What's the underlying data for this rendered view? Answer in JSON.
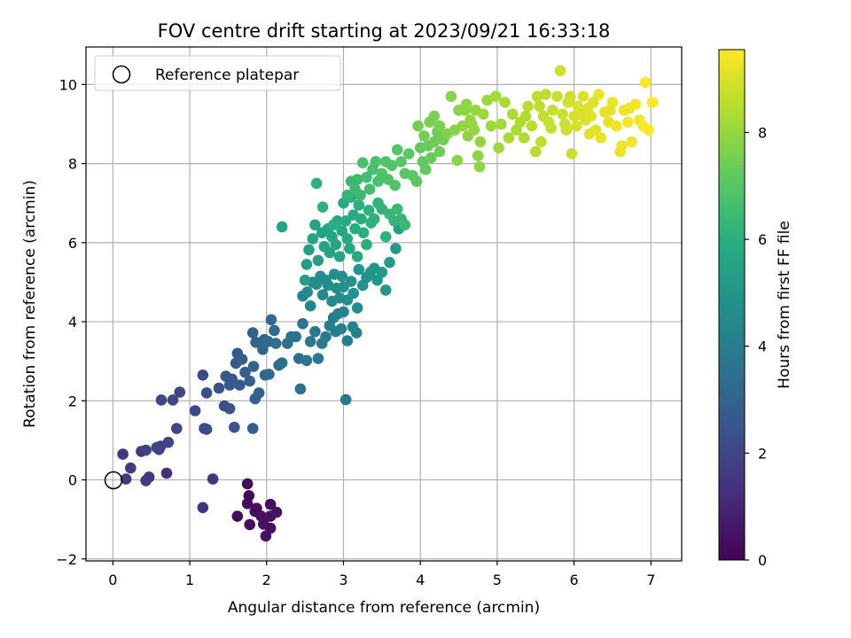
{
  "chart_data": {
    "type": "scatter",
    "title": "FOV centre drift starting at 2023/09/21 16:33:18",
    "xlabel": "Angular distance from reference (arcmin)",
    "ylabel": "Rotation from reference (arcmin)",
    "xlim": [
      -0.35,
      7.4
    ],
    "ylim": [
      -2.05,
      10.95
    ],
    "xticks": [
      "0",
      "1",
      "2",
      "3",
      "4",
      "5",
      "6",
      "7"
    ],
    "yticks": [
      "−2",
      "0",
      "2",
      "4",
      "6",
      "8",
      "10"
    ],
    "grid": true,
    "legend": {
      "placement": "top-left",
      "entries": [
        "Reference platepar"
      ]
    },
    "reference_point": {
      "x": 0,
      "y": 0
    },
    "colorbar": {
      "label": "Hours from first FF file",
      "range": [
        0,
        9.55
      ],
      "ticks": [
        "0",
        "2",
        "4",
        "6",
        "8"
      ],
      "colormap": "viridis"
    },
    "points": [
      [
        1.75,
        -0.1,
        0.15
      ],
      [
        1.77,
        -0.4,
        0.2
      ],
      [
        1.75,
        -0.6,
        0.25
      ],
      [
        1.62,
        -0.92,
        0.3
      ],
      [
        1.78,
        -1.13,
        0.35
      ],
      [
        1.87,
        -0.72,
        0.3
      ],
      [
        1.93,
        -0.92,
        0.35
      ],
      [
        1.96,
        -1.12,
        0.4
      ],
      [
        1.99,
        -1.42,
        0.45
      ],
      [
        2.05,
        -1.22,
        0.4
      ],
      [
        2.05,
        -0.92,
        0.45
      ],
      [
        2.13,
        -0.82,
        0.5
      ],
      [
        2.05,
        -0.62,
        0.3
      ],
      [
        1.85,
        -0.8,
        0.25
      ],
      [
        1.17,
        -0.7,
        1.4
      ],
      [
        1.3,
        0.02,
        1.5
      ],
      [
        0.7,
        0.17,
        1.3
      ],
      [
        0.47,
        0.07,
        1.5
      ],
      [
        0.43,
        -0.02,
        1.6
      ],
      [
        0.17,
        0.02,
        1.7
      ],
      [
        0.13,
        0.65,
        1.5
      ],
      [
        0.23,
        0.3,
        1.6
      ],
      [
        0.37,
        0.72,
        1.7
      ],
      [
        0.43,
        0.75,
        1.8
      ],
      [
        0.57,
        0.82,
        1.9
      ],
      [
        0.62,
        0.85,
        1.8
      ],
      [
        0.6,
        0.77,
        1.9
      ],
      [
        0.72,
        0.95,
        1.9
      ],
      [
        0.83,
        1.3,
        2.0
      ],
      [
        0.63,
        2.02,
        1.9
      ],
      [
        0.78,
        2.02,
        2.0
      ],
      [
        0.87,
        2.22,
        2.0
      ],
      [
        1.07,
        1.75,
        2.1
      ],
      [
        1.19,
        1.3,
        2.1
      ],
      [
        1.22,
        1.28,
        2.2
      ],
      [
        1.17,
        2.65,
        2.2
      ],
      [
        1.22,
        2.2,
        2.3
      ],
      [
        1.38,
        2.32,
        2.4
      ],
      [
        1.45,
        1.87,
        2.3
      ],
      [
        1.52,
        1.8,
        2.4
      ],
      [
        1.58,
        1.33,
        2.5
      ],
      [
        1.52,
        2.4,
        2.5
      ],
      [
        1.47,
        2.62,
        2.6
      ],
      [
        1.55,
        2.55,
        2.6
      ],
      [
        1.6,
        2.95,
        2.7
      ],
      [
        1.62,
        3.2,
        2.7
      ],
      [
        1.68,
        3.05,
        2.8
      ],
      [
        1.65,
        2.4,
        2.7
      ],
      [
        1.72,
        2.72,
        2.8
      ],
      [
        1.78,
        2.5,
        2.9
      ],
      [
        1.82,
        3.72,
        2.9
      ],
      [
        1.86,
        3.48,
        3.0
      ],
      [
        1.83,
        2.87,
        3.0
      ],
      [
        1.85,
        2.05,
        2.9
      ],
      [
        1.82,
        1.3,
        2.8
      ],
      [
        1.9,
        2.2,
        3.0
      ],
      [
        1.95,
        3.3,
        3.1
      ],
      [
        1.97,
        3.55,
        3.1
      ],
      [
        1.98,
        2.65,
        3.1
      ],
      [
        2.02,
        3.5,
        3.2
      ],
      [
        2.03,
        2.67,
        3.2
      ],
      [
        2.06,
        4.05,
        3.3
      ],
      [
        2.1,
        3.78,
        3.3
      ],
      [
        2.12,
        3.45,
        3.4
      ],
      [
        2.16,
        2.9,
        3.4
      ],
      [
        2.2,
        2.96,
        3.5
      ],
      [
        2.27,
        3.45,
        3.5
      ],
      [
        2.32,
        3.62,
        3.6
      ],
      [
        2.38,
        3.62,
        3.6
      ],
      [
        2.42,
        3.07,
        3.6
      ],
      [
        2.44,
        2.3,
        3.5
      ],
      [
        2.47,
        3.95,
        3.7
      ],
      [
        2.52,
        3.02,
        3.7
      ],
      [
        2.57,
        3.5,
        3.8
      ],
      [
        2.63,
        3.75,
        3.8
      ],
      [
        2.67,
        3.07,
        3.8
      ],
      [
        2.72,
        3.45,
        3.9
      ],
      [
        2.77,
        3.62,
        3.9
      ],
      [
        2.82,
        3.9,
        4.0
      ],
      [
        2.87,
        4.1,
        4.0
      ],
      [
        2.9,
        3.75,
        4.0
      ],
      [
        2.93,
        4.2,
        4.1
      ],
      [
        2.97,
        3.82,
        4.1
      ],
      [
        3.0,
        4.25,
        4.2
      ],
      [
        3.03,
        2.03,
        3.9
      ],
      [
        3.05,
        3.52,
        4.1
      ],
      [
        3.12,
        3.87,
        4.2
      ],
      [
        3.17,
        3.72,
        4.2
      ],
      [
        2.47,
        4.65,
        4.3
      ],
      [
        2.53,
        4.75,
        4.4
      ],
      [
        2.57,
        4.4,
        4.4
      ],
      [
        2.6,
        5.0,
        4.5
      ],
      [
        2.65,
        4.95,
        4.5
      ],
      [
        2.7,
        5.15,
        4.6
      ],
      [
        2.73,
        4.68,
        4.5
      ],
      [
        2.77,
        5.05,
        4.6
      ],
      [
        2.8,
        4.92,
        4.6
      ],
      [
        2.85,
        4.52,
        4.5
      ],
      [
        2.88,
        5.2,
        4.7
      ],
      [
        2.91,
        4.85,
        4.7
      ],
      [
        2.95,
        4.6,
        4.6
      ],
      [
        2.98,
        5.15,
        4.7
      ],
      [
        3.0,
        4.88,
        4.8
      ],
      [
        3.05,
        4.55,
        4.7
      ],
      [
        3.1,
        5.02,
        4.8
      ],
      [
        3.13,
        4.72,
        4.8
      ],
      [
        3.18,
        4.35,
        4.7
      ],
      [
        3.2,
        5.32,
        4.9
      ],
      [
        3.25,
        4.92,
        4.9
      ],
      [
        3.3,
        5.12,
        4.9
      ],
      [
        3.35,
        5.25,
        5.0
      ],
      [
        3.4,
        5.35,
        5.0
      ],
      [
        3.44,
        5.05,
        5.0
      ],
      [
        3.5,
        5.25,
        5.1
      ],
      [
        3.55,
        4.8,
        5.0
      ],
      [
        3.6,
        5.5,
        5.1
      ],
      [
        3.68,
        5.85,
        5.2
      ],
      [
        3.72,
        6.35,
        5.3
      ],
      [
        2.2,
        6.4,
        5.5
      ],
      [
        2.5,
        5.05,
        5.3
      ],
      [
        2.52,
        5.45,
        5.3
      ],
      [
        2.55,
        5.82,
        5.4
      ],
      [
        2.6,
        6.1,
        5.5
      ],
      [
        2.63,
        6.45,
        5.5
      ],
      [
        2.67,
        5.55,
        5.4
      ],
      [
        2.72,
        6.25,
        5.5
      ],
      [
        2.75,
        5.9,
        5.5
      ],
      [
        2.8,
        6.35,
        5.6
      ],
      [
        2.82,
        5.75,
        5.5
      ],
      [
        2.85,
        6.15,
        5.6
      ],
      [
        2.9,
        5.95,
        5.6
      ],
      [
        2.92,
        6.55,
        5.7
      ],
      [
        2.95,
        5.65,
        5.6
      ],
      [
        2.98,
        6.3,
        5.7
      ],
      [
        3.0,
        7.0,
        5.8
      ],
      [
        3.03,
        6.55,
        5.8
      ],
      [
        3.05,
        6.1,
        5.8
      ],
      [
        3.08,
        5.85,
        5.7
      ],
      [
        3.1,
        7.15,
        5.9
      ],
      [
        3.13,
        6.7,
        5.9
      ],
      [
        3.15,
        6.35,
        5.9
      ],
      [
        3.18,
        5.65,
        5.8
      ],
      [
        3.2,
        6.95,
        6.0
      ],
      [
        3.23,
        6.6,
        6.0
      ],
      [
        3.26,
        6.25,
        6.0
      ],
      [
        3.3,
        5.95,
        6.0
      ],
      [
        3.33,
        6.82,
        6.1
      ],
      [
        3.36,
        6.5,
        6.1
      ],
      [
        3.4,
        6.6,
        6.1
      ],
      [
        3.45,
        7.0,
        6.2
      ],
      [
        3.5,
        6.85,
        6.2
      ],
      [
        3.55,
        6.15,
        6.1
      ],
      [
        3.6,
        6.72,
        6.3
      ],
      [
        3.66,
        6.55,
        6.3
      ],
      [
        3.7,
        6.85,
        6.4
      ],
      [
        3.75,
        6.6,
        6.3
      ],
      [
        3.8,
        6.45,
        6.4
      ],
      [
        2.65,
        7.5,
        6.1
      ],
      [
        2.73,
        6.9,
        6.1
      ],
      [
        2.87,
        6.45,
        6.0
      ],
      [
        3.05,
        7.2,
        6.3
      ],
      [
        3.1,
        7.55,
        6.4
      ],
      [
        3.15,
        7.35,
        6.5
      ],
      [
        3.18,
        7.6,
        6.5
      ],
      [
        3.22,
        7.2,
        6.5
      ],
      [
        3.25,
        8.02,
        6.7
      ],
      [
        3.3,
        7.65,
        6.6
      ],
      [
        3.34,
        7.35,
        6.6
      ],
      [
        3.38,
        7.85,
        6.7
      ],
      [
        3.42,
        8.05,
        6.8
      ],
      [
        3.45,
        7.55,
        6.7
      ],
      [
        3.5,
        7.75,
        6.8
      ],
      [
        3.55,
        8.05,
        6.9
      ],
      [
        3.58,
        7.6,
        6.8
      ],
      [
        3.63,
        7.95,
        6.9
      ],
      [
        3.67,
        7.45,
        6.9
      ],
      [
        3.7,
        8.35,
        7.0
      ],
      [
        3.75,
        8.05,
        7.0
      ],
      [
        3.8,
        7.75,
        7.0
      ],
      [
        3.85,
        8.25,
        7.1
      ],
      [
        3.9,
        7.7,
        7.1
      ],
      [
        3.95,
        7.55,
        7.1
      ],
      [
        4.0,
        8.4,
        7.2
      ],
      [
        4.03,
        8.05,
        7.2
      ],
      [
        4.07,
        7.85,
        7.2
      ],
      [
        4.1,
        8.45,
        7.3
      ],
      [
        4.14,
        8.15,
        7.3
      ],
      [
        4.18,
        8.55,
        7.4
      ],
      [
        4.22,
        8.8,
        7.4
      ],
      [
        4.25,
        8.3,
        7.4
      ],
      [
        4.3,
        8.6,
        7.5
      ],
      [
        3.97,
        8.95,
        7.5
      ],
      [
        4.05,
        8.7,
        7.5
      ],
      [
        4.12,
        9.05,
        7.6
      ],
      [
        4.18,
        9.2,
        7.6
      ],
      [
        4.25,
        8.95,
        7.6
      ],
      [
        4.35,
        8.75,
        7.7
      ],
      [
        4.4,
        9.7,
        7.8
      ],
      [
        4.45,
        8.85,
        7.8
      ],
      [
        4.5,
        9.35,
        7.8
      ],
      [
        4.55,
        8.95,
        7.9
      ],
      [
        4.58,
        9.35,
        7.9
      ],
      [
        4.62,
        8.7,
        7.9
      ],
      [
        4.65,
        9.1,
        8.0
      ],
      [
        4.7,
        8.85,
        8.0
      ],
      [
        4.72,
        9.35,
        8.0
      ],
      [
        4.75,
        8.2,
        7.9
      ],
      [
        4.78,
        8.55,
        8.0
      ],
      [
        4.82,
        9.25,
        8.1
      ],
      [
        4.87,
        9.6,
        8.1
      ],
      [
        4.92,
        8.95,
        8.1
      ],
      [
        4.98,
        9.7,
        8.2
      ],
      [
        5.02,
        8.4,
        8.1
      ],
      [
        5.05,
        9.0,
        8.2
      ],
      [
        5.1,
        9.55,
        8.3
      ],
      [
        5.2,
        9.25,
        8.3
      ],
      [
        5.3,
        9.05,
        8.4
      ],
      [
        5.37,
        9.2,
        8.4
      ],
      [
        4.48,
        8.08,
        7.8
      ],
      [
        4.77,
        7.92,
        7.9
      ],
      [
        4.6,
        9.5,
        7.9
      ],
      [
        4.67,
        9.0,
        7.9
      ],
      [
        5.15,
        8.65,
        8.3
      ],
      [
        5.25,
        8.85,
        8.3
      ],
      [
        5.35,
        8.65,
        8.4
      ],
      [
        5.4,
        9.45,
        8.5
      ],
      [
        5.45,
        8.95,
        8.5
      ],
      [
        5.5,
        8.3,
        8.5
      ],
      [
        5.52,
        9.7,
        8.6
      ],
      [
        5.57,
        8.55,
        8.6
      ],
      [
        5.6,
        9.2,
        8.6
      ],
      [
        5.63,
        9.75,
        8.6
      ],
      [
        5.67,
        9.05,
        8.7
      ],
      [
        5.7,
        8.9,
        8.7
      ],
      [
        5.72,
        9.35,
        8.7
      ],
      [
        5.78,
        9.7,
        8.8
      ],
      [
        5.82,
        10.35,
        8.8
      ],
      [
        5.85,
        9.25,
        8.8
      ],
      [
        5.88,
        9.0,
        8.8
      ],
      [
        5.92,
        9.55,
        8.9
      ],
      [
        5.95,
        9.7,
        8.9
      ],
      [
        5.97,
        8.25,
        8.8
      ],
      [
        6.0,
        9.2,
        8.9
      ],
      [
        6.03,
        8.95,
        8.9
      ],
      [
        6.05,
        9.45,
        9.0
      ],
      [
        6.08,
        9.25,
        9.0
      ],
      [
        6.12,
        9.7,
        9.0
      ],
      [
        6.15,
        9.1,
        9.0
      ],
      [
        6.18,
        9.4,
        9.1
      ],
      [
        6.22,
        9.2,
        9.1
      ],
      [
        6.25,
        9.55,
        9.1
      ],
      [
        6.28,
        8.85,
        9.1
      ],
      [
        6.32,
        9.75,
        9.2
      ],
      [
        6.35,
        8.65,
        9.2
      ],
      [
        6.4,
        9.3,
        9.2
      ],
      [
        6.45,
        9.05,
        9.2
      ],
      [
        6.5,
        9.55,
        9.3
      ],
      [
        6.55,
        8.95,
        9.3
      ],
      [
        6.6,
        8.3,
        9.3
      ],
      [
        6.65,
        9.35,
        9.3
      ],
      [
        6.7,
        9.05,
        9.4
      ],
      [
        6.75,
        8.55,
        9.4
      ],
      [
        6.8,
        9.5,
        9.4
      ],
      [
        6.85,
        9.1,
        9.4
      ],
      [
        6.9,
        8.95,
        9.5
      ],
      [
        6.93,
        10.05,
        9.5
      ],
      [
        6.97,
        8.85,
        9.5
      ],
      [
        7.02,
        9.55,
        9.5
      ],
      [
        5.55,
        9.45,
        8.6
      ],
      [
        5.9,
        8.85,
        8.8
      ],
      [
        6.2,
        8.75,
        9.1
      ],
      [
        6.47,
        9.35,
        9.2
      ],
      [
        6.62,
        8.45,
        9.3
      ],
      [
        6.72,
        9.4,
        9.3
      ]
    ]
  }
}
